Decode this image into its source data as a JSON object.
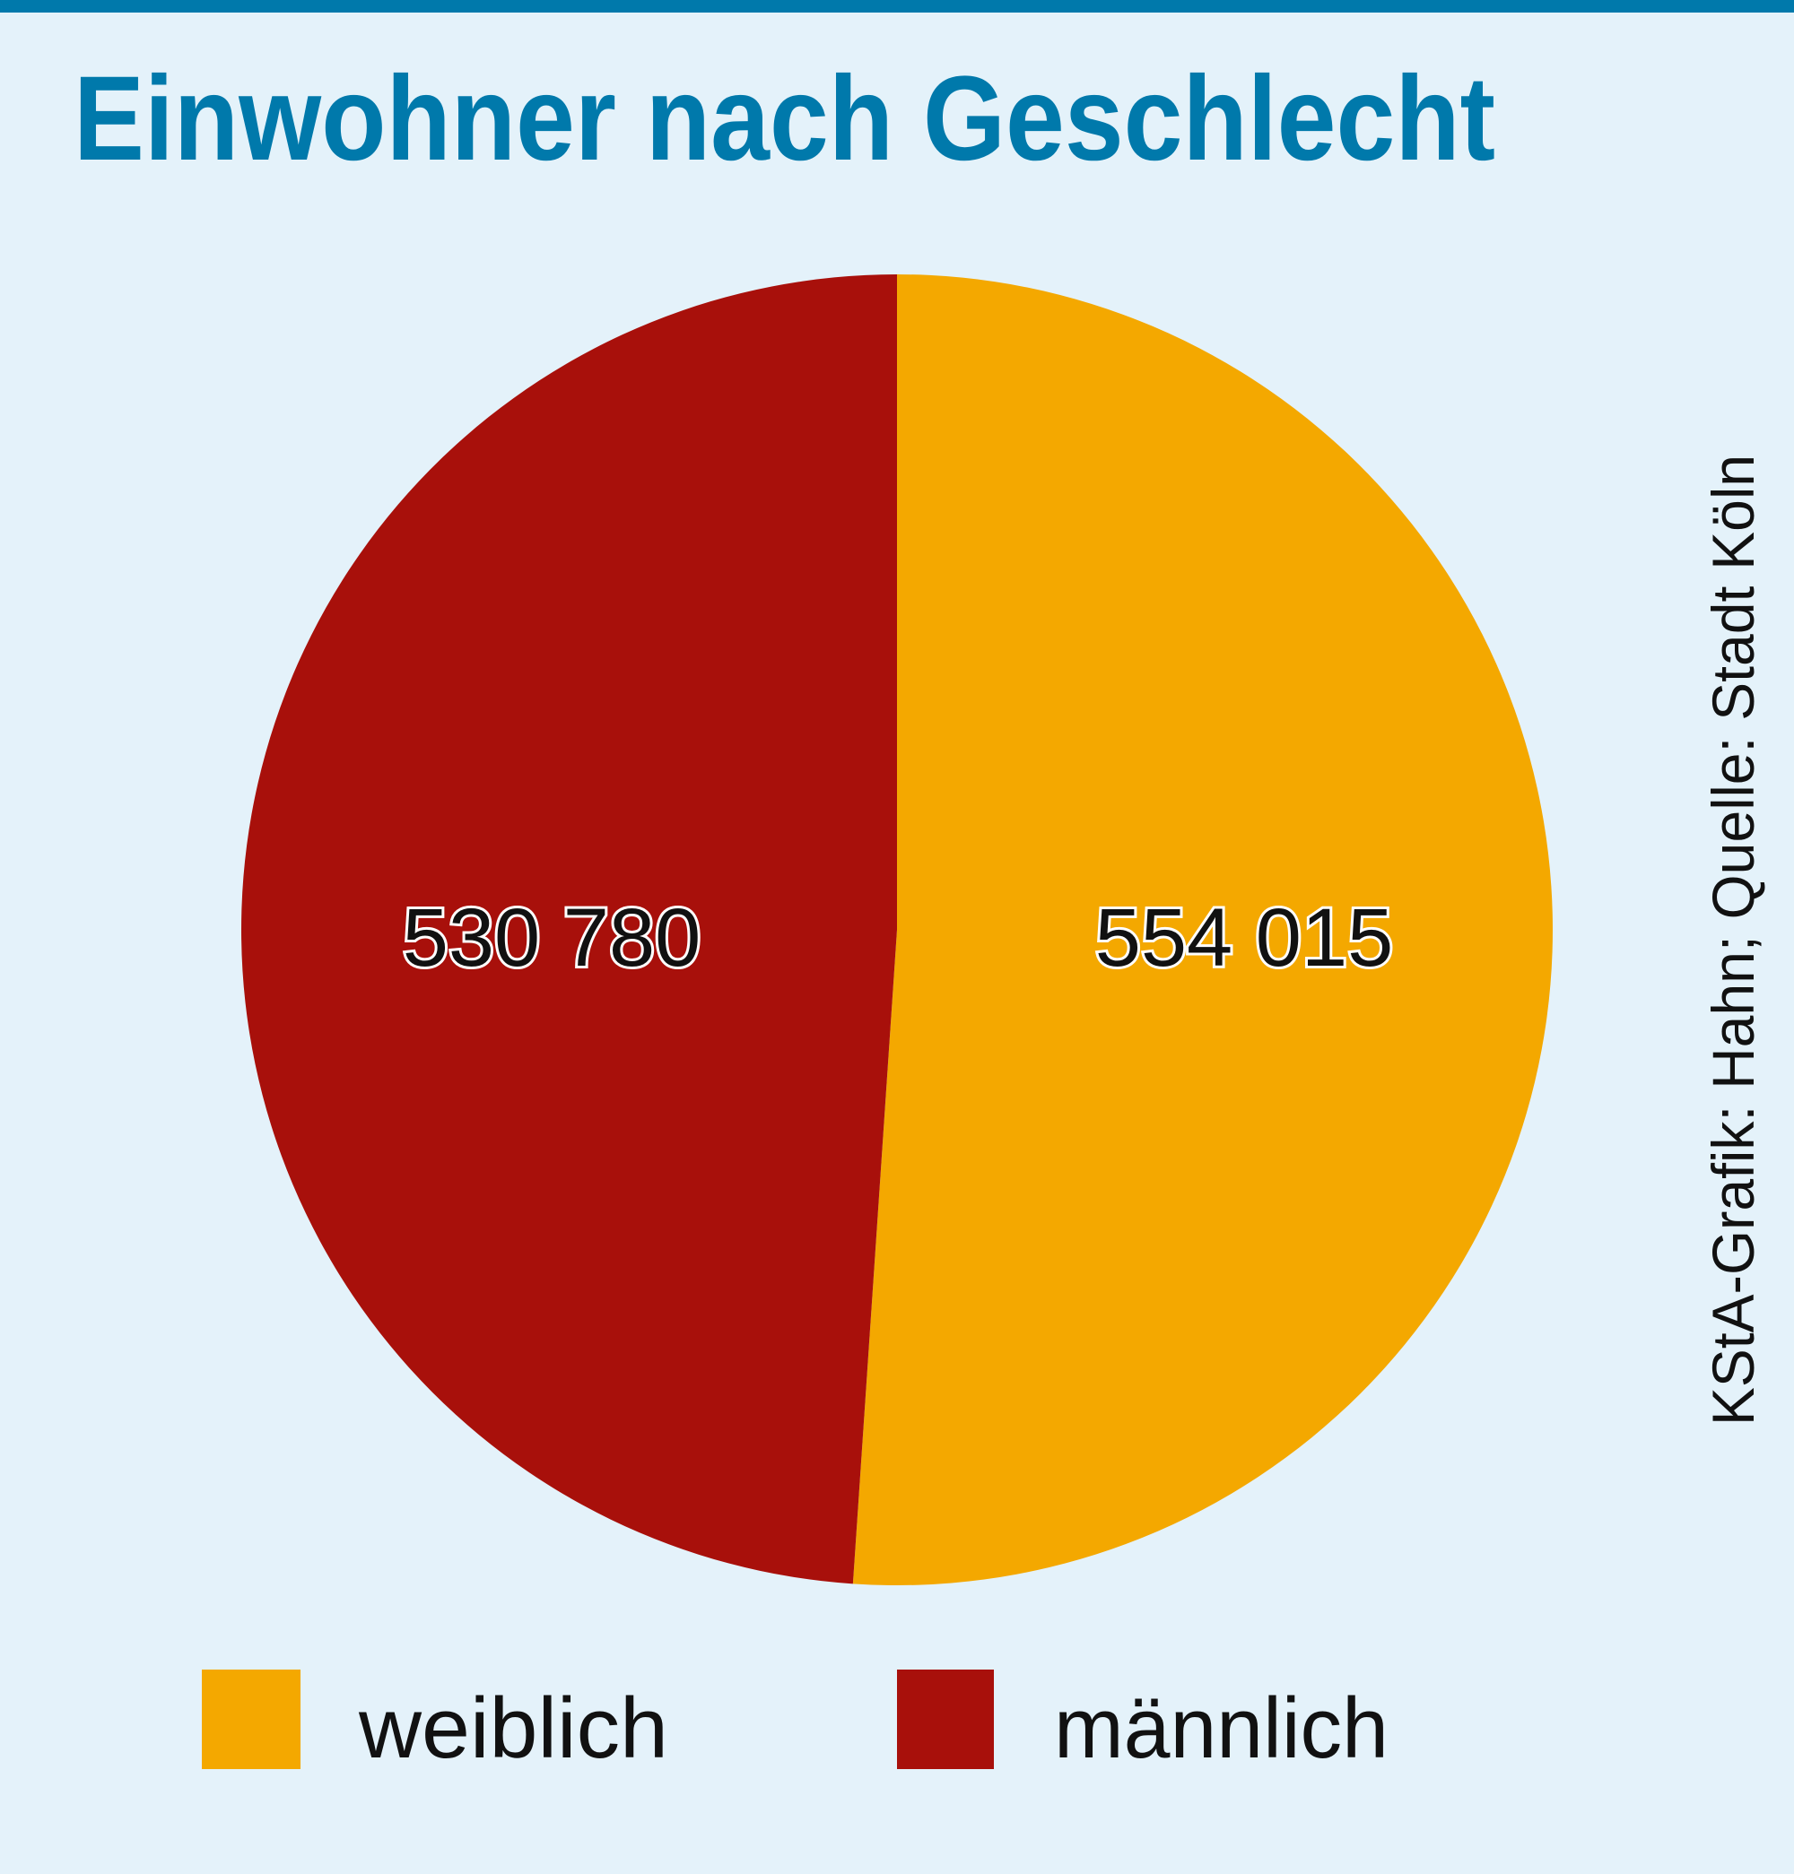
{
  "chart_data": {
    "type": "pie",
    "title": "Einwohner nach Geschlecht",
    "categories": [
      "weiblich",
      "männlich"
    ],
    "values": [
      554015,
      530780
    ],
    "value_labels": [
      "554 015",
      "530 780"
    ],
    "colors": [
      "#f4a800",
      "#a8100b"
    ],
    "legend": "bottom",
    "source": "KStA-Grafik: Hahn; Quelle: Stadt Köln"
  },
  "colors": {
    "accent": "#0079ab",
    "background": "#e4f2fa"
  }
}
